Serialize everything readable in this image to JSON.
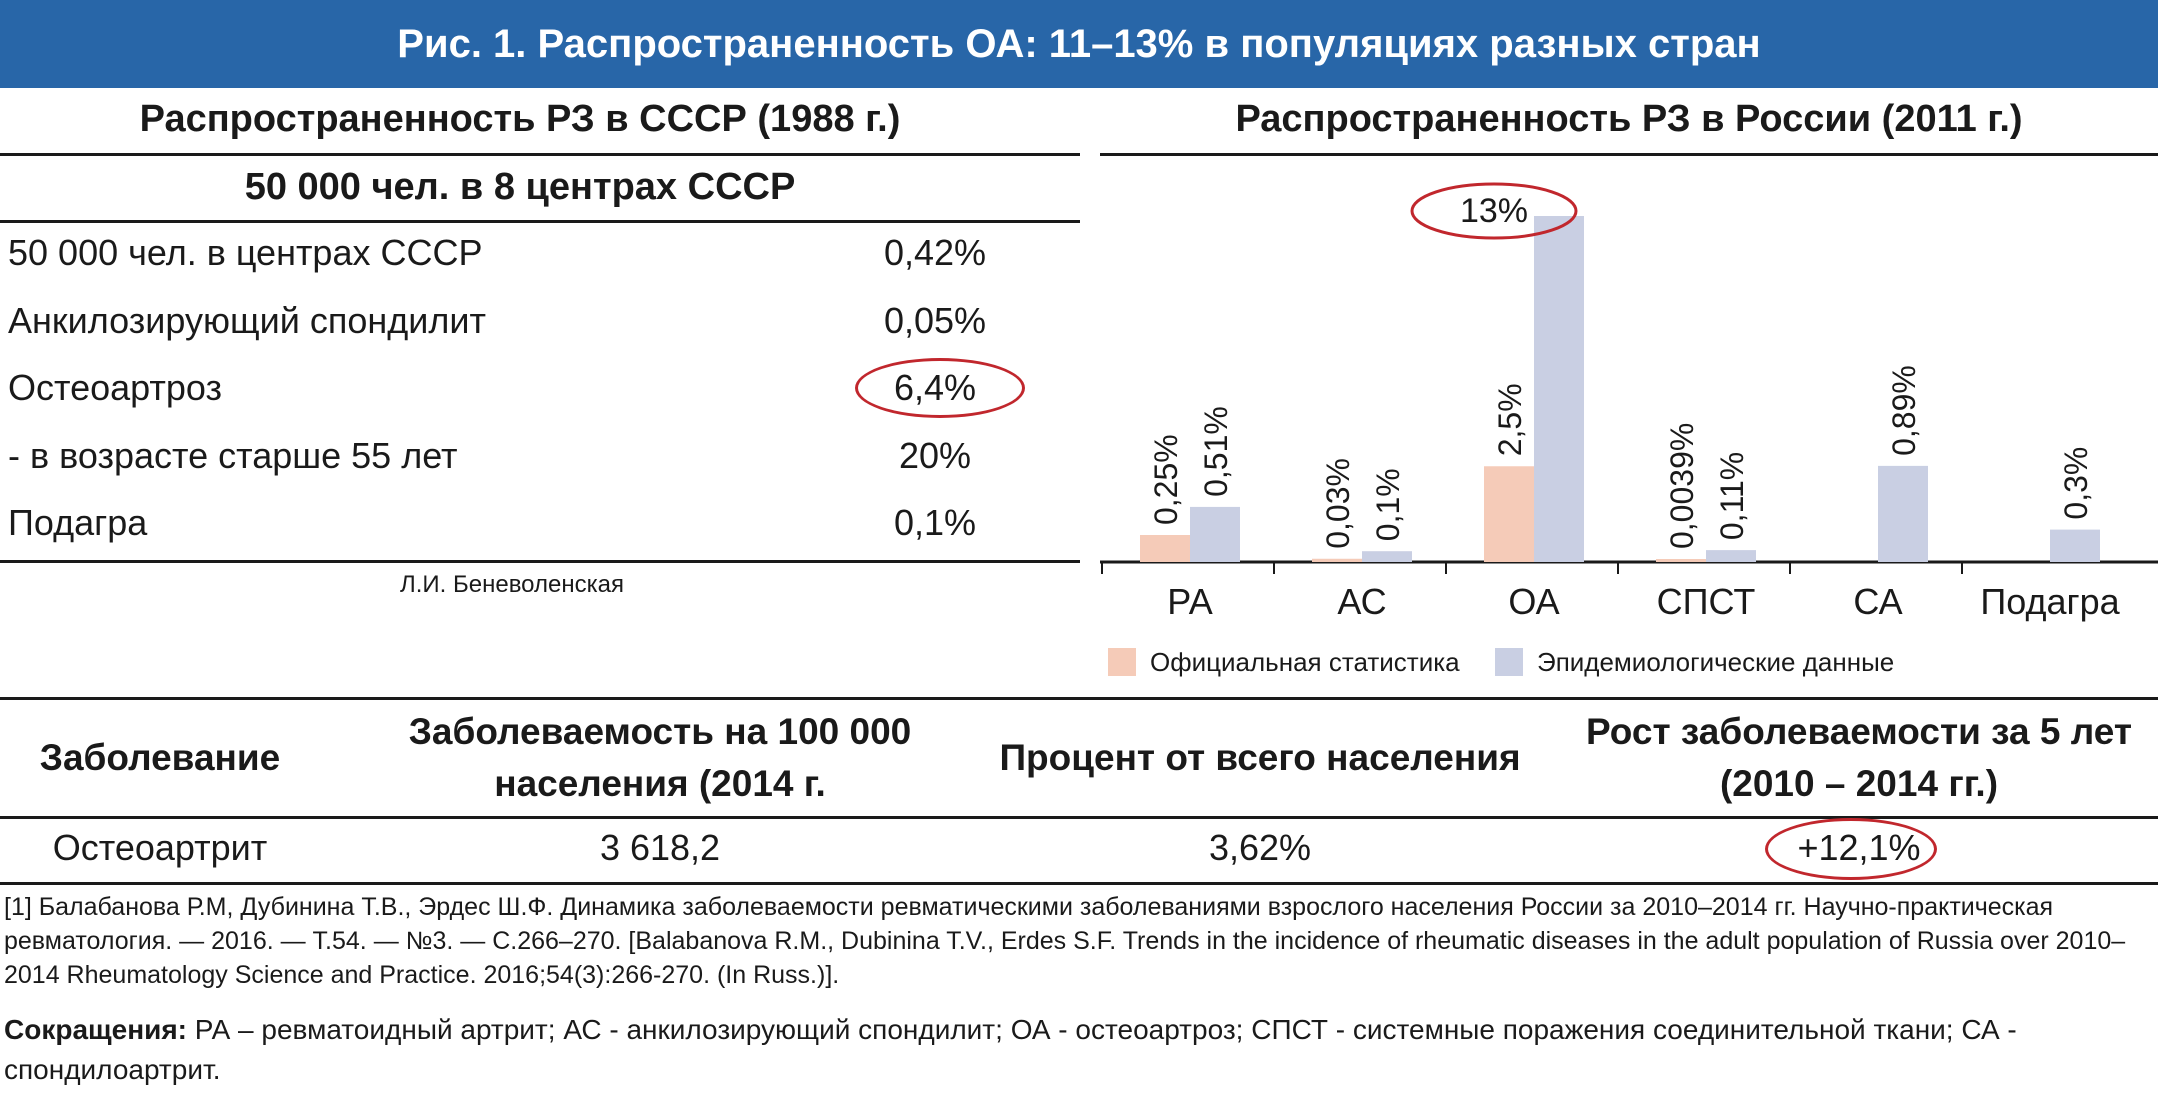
{
  "header": {
    "title": "Рис. 1. Распространенность ОА: 11–13% в популяциях разных стран"
  },
  "left_panel": {
    "title": "Распространенность РЗ в СССР (1988 г.)",
    "subtitle": "50 000 чел. в 8 центрах СССР",
    "rows": [
      {
        "label": "50 000 чел. в центрах СССР",
        "value": "0,42%"
      },
      {
        "label": "Анкилозирующий спондилит",
        "value": "0,05%"
      },
      {
        "label": "Остеоартроз",
        "value": "6,4%"
      },
      {
        "label": "- в возрасте старше 55 лет",
        "value": "20%"
      },
      {
        "label": "Подагра",
        "value": "0,1%"
      }
    ],
    "credit": "Л.И. Беневоленская"
  },
  "chart_data": {
    "type": "bar",
    "title": "Распространенность РЗ в России (2011 г.)",
    "categories": [
      "РА",
      "АС",
      "ОА",
      "СПСТ",
      "СА",
      "Подагра"
    ],
    "series": [
      {
        "name": "Официальная статистика",
        "color": "#f5cbb8",
        "values": [
          0.25,
          0.03,
          2.5,
          0.0039,
          null,
          null
        ],
        "labels": [
          "0,25%",
          "0,03%",
          "2,5%",
          "0,0039%",
          "",
          ""
        ]
      },
      {
        "name": "Эпидемиологические данные",
        "color": "#c9cfe3",
        "values": [
          0.51,
          0.1,
          13,
          0.11,
          0.89,
          0.3
        ],
        "labels": [
          "0,51%",
          "0,1%",
          "",
          "0,11%",
          "0,89%",
          "0,3%"
        ]
      }
    ],
    "highlight_label": "13%",
    "legend_position": "bottom",
    "grid": false
  },
  "bottom_table": {
    "headers": [
      "Заболевание",
      "Заболеваемость на 100 000 населения (2014 г.",
      "Процент от всего населения",
      "Рост заболеваемости за 5 лет (2010 – 2014 гг.)"
    ],
    "row": [
      "Остеоартрит",
      "3 618,2",
      "3,62%",
      "+12,1%"
    ]
  },
  "reference": "[1] Балабанова Р.М, Дубинина Т.В., Эрдес Ш.Ф. Динамика заболеваемости ревматическими заболеваниями взрослого населения России за 2010–2014 гг. Научно-практическая ревматология. — 2016. — Т.54. — №3. — С.266–270. [Balabanova R.M., Dubinina T.V., Erdes S.F. Trends in the incidence of rheumatic diseases in the adult population of Russia over 2010–2014 Rheumatology Science and Practice. 2016;54(3):266-270. (In Russ.)].",
  "abbreviations": {
    "label": "Сокращения:",
    "text": " РА – ревматоидный артрит; АС - анкилозирующий спондилит; ОА - остеоартроз; СПСТ - системные поражения соединительной ткани; СА - спондилоартрит."
  }
}
